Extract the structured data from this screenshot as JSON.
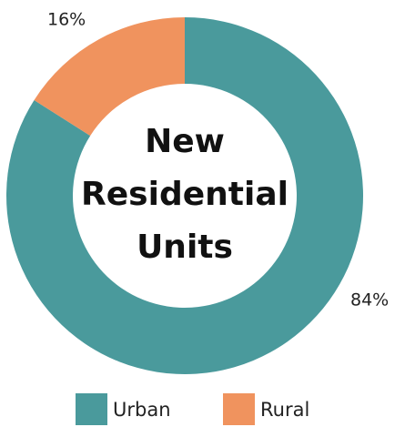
{
  "chart_data": {
    "type": "donut",
    "title": "New Residential Units",
    "categories": [
      "Urban",
      "Rural"
    ],
    "values": [
      84,
      16
    ],
    "value_labels": [
      "84%",
      "16%"
    ],
    "colors": [
      "#4a9a9c",
      "#f0935e"
    ]
  }
}
